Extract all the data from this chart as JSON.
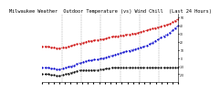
{
  "title": "Milwaukee Weather  Outdoor Temperature (vs) Wind Chill  (Last 24 Hours)",
  "title_fontsize": 3.8,
  "title_color": "#000000",
  "background_color": "#ffffff",
  "plot_bg_color": "#ffffff",
  "grid_color": "#999999",
  "n_points": 48,
  "temp_color": "#cc0000",
  "chill_color": "#0000cc",
  "black_color": "#000000",
  "temp_values": [
    14,
    14,
    14,
    13,
    13,
    12,
    12,
    13,
    13,
    14,
    15,
    16,
    17,
    18,
    19,
    20,
    21,
    21,
    22,
    22,
    23,
    23,
    24,
    25,
    26,
    27,
    27,
    28,
    28,
    29,
    29,
    30,
    30,
    31,
    32,
    33,
    34,
    35,
    36,
    37,
    38,
    39,
    40,
    41,
    42,
    44,
    46,
    48
  ],
  "chill_values": [
    -12,
    -12,
    -12,
    -13,
    -13,
    -14,
    -14,
    -13,
    -12,
    -11,
    -10,
    -9,
    -7,
    -6,
    -5,
    -4,
    -3,
    -3,
    -2,
    -2,
    -1,
    0,
    1,
    2,
    3,
    4,
    5,
    6,
    7,
    8,
    9,
    10,
    11,
    12,
    13,
    14,
    15,
    17,
    19,
    21,
    23,
    25,
    27,
    29,
    31,
    34,
    37,
    40
  ],
  "black_values": [
    -20,
    -20,
    -20,
    -21,
    -21,
    -22,
    -22,
    -21,
    -20,
    -19,
    -18,
    -17,
    -16,
    -15,
    -15,
    -15,
    -15,
    -15,
    -15,
    -15,
    -14,
    -14,
    -13,
    -13,
    -12,
    -12,
    -12,
    -12,
    -12,
    -12,
    -12,
    -12,
    -12,
    -12,
    -12,
    -12,
    -12,
    -12,
    -12,
    -12,
    -12,
    -12,
    -12,
    -12,
    -12,
    -12,
    -12,
    -12
  ],
  "ylim": [
    -30,
    55
  ],
  "yticks": [
    -20,
    -10,
    0,
    10,
    20,
    30,
    40,
    50
  ],
  "ytick_labels": [
    "-20",
    "-10",
    "0",
    "10",
    "20",
    "30",
    "40",
    "50"
  ],
  "n_gridlines": 6,
  "marker_size": 1.2,
  "line_width": 0.7
}
